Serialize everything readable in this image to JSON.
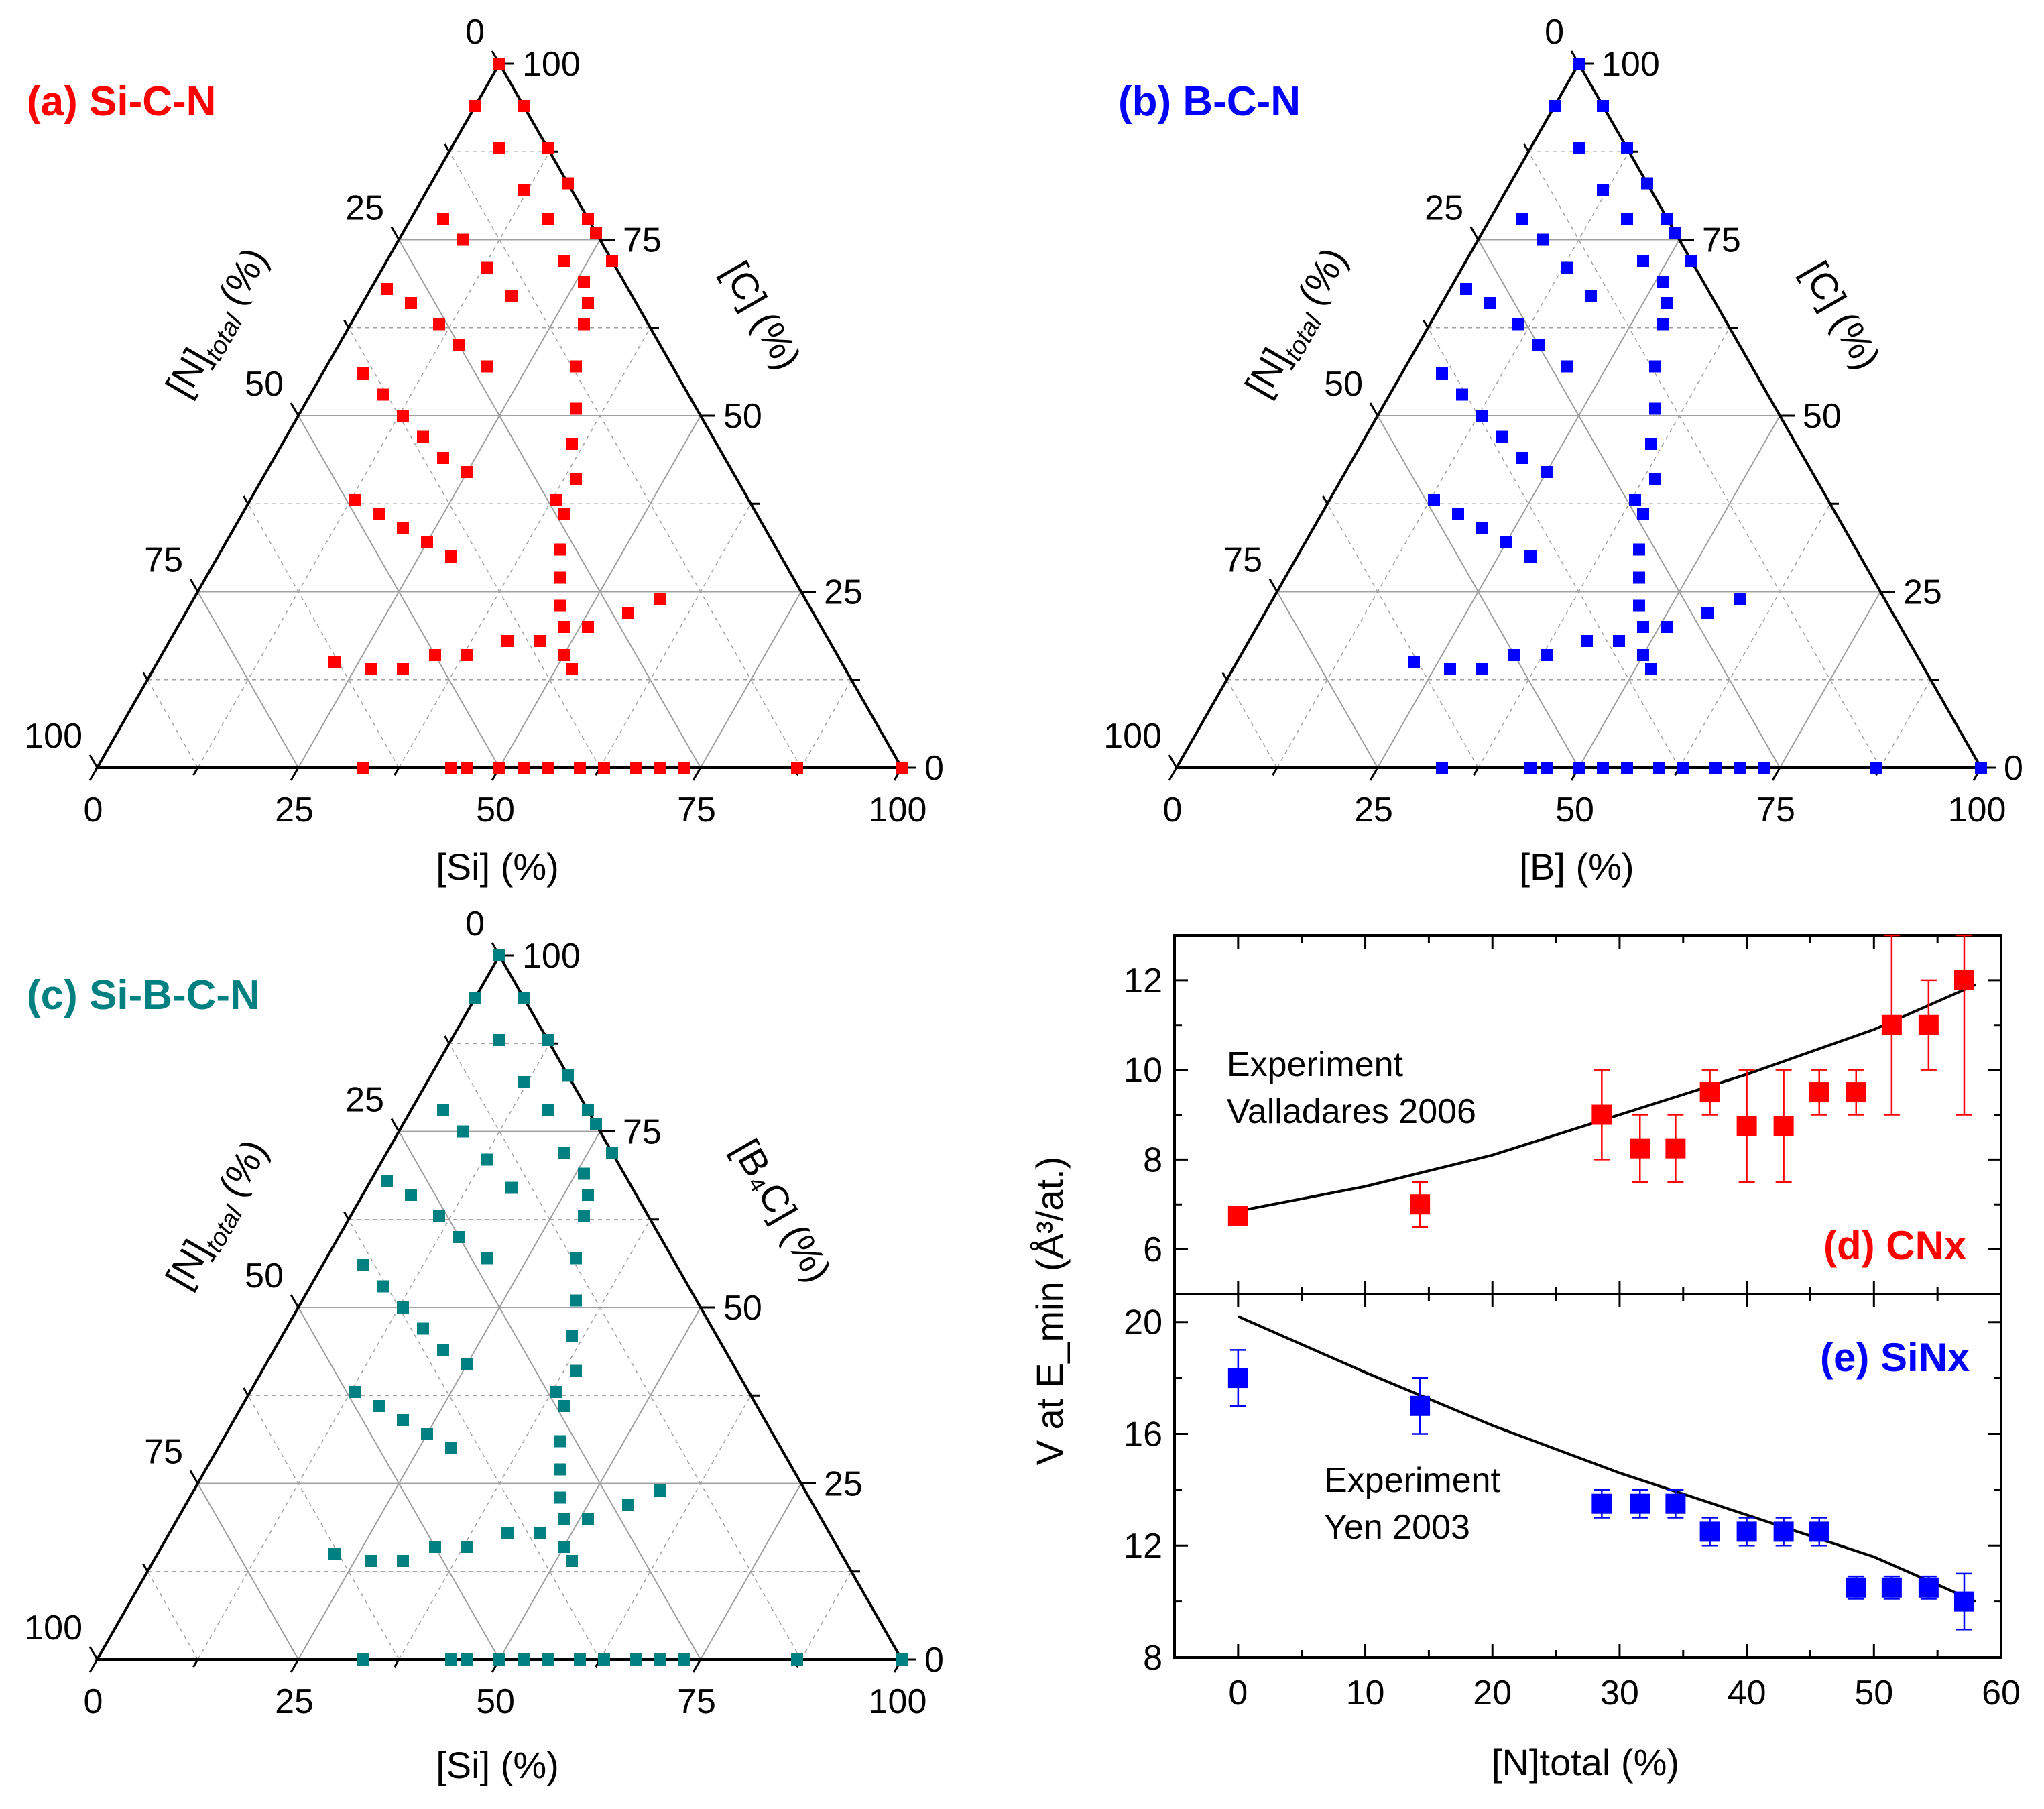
{
  "colors": {
    "si_c_n": "#ff0000",
    "b_c_n": "#0000ff",
    "si_b_c_n": "#008080",
    "cnx": "#ff0000",
    "sinx": "#0000ff",
    "axis": "#000000",
    "grid": "#a0a0a0"
  },
  "ternary_ticks": [
    "0",
    "25",
    "50",
    "75",
    "100"
  ],
  "panels": {
    "a": {
      "label": "(a) Si-C-N",
      "bottom_axis": "[Si] (%)",
      "right_axis": "[C] (%)"
    },
    "b": {
      "label": "(b) B-C-N",
      "bottom_axis": "[B] (%)",
      "right_axis": "[C] (%)"
    },
    "c": {
      "label": "(c) Si-B-C-N",
      "bottom_axis": "[Si] (%)",
      "right_axis": "[B₄C] (%)"
    },
    "de": {
      "ylabel": "V at E_min (Å³/at.)",
      "xlabel": "[N]total (%)",
      "d_label": "(d) CNx",
      "e_label": "(e) SiNx",
      "d_text_1": "Experiment",
      "d_text_2": "Valladares 2006",
      "e_text_1": "Experiment",
      "e_text_2": "Yen 2003",
      "x_ticks": [
        "0",
        "10",
        "20",
        "30",
        "40",
        "50",
        "60"
      ],
      "d_y_ticks": [
        "6",
        "8",
        "10",
        "12"
      ],
      "e_y_ticks": [
        "8",
        "12",
        "16",
        "20"
      ]
    }
  },
  "left_axis_label": {
    "main": "[N]",
    "sub": "total",
    "unit": "(%)"
  },
  "chart_data": [
    {
      "type": "scatter",
      "panel": "a",
      "title": "(a) Si-C-N",
      "ternary": true,
      "axes": {
        "bottom": "[Si] (%)",
        "right": "[C] (%)",
        "left": "[N]total (%)"
      },
      "series": [
        {
          "name": "Si-C-N",
          "points": [
            [
              0,
              100
            ],
            [
              6,
              94
            ],
            [
              12,
              88
            ],
            [
              17,
              83
            ],
            [
              22,
              78
            ],
            [
              28,
              72
            ],
            [
              33,
              0
            ],
            [
              38,
              38
            ],
            [
              0,
              94
            ],
            [
              6,
              88
            ],
            [
              12,
              82
            ],
            [
              17,
              78
            ],
            [
              22,
              72
            ],
            [
              28,
              66
            ],
            [
              4,
              78
            ],
            [
              8,
              75
            ],
            [
              13,
              71
            ],
            [
              18,
              67
            ],
            [
              2,
              68
            ],
            [
              6,
              66
            ],
            [
              11,
              63
            ],
            [
              15,
              60
            ],
            [
              20,
              57
            ],
            [
              5,
              56
            ],
            [
              9,
              53
            ],
            [
              13,
              50
            ],
            [
              17,
              47
            ],
            [
              21,
              44
            ],
            [
              25,
              42
            ],
            [
              13,
              38
            ],
            [
              17,
              36
            ],
            [
              21,
              34
            ],
            [
              25,
              32
            ],
            [
              29,
              30
            ],
            [
              22,
              15
            ],
            [
              27,
              14
            ],
            [
              31,
              14
            ],
            [
              34,
              16
            ],
            [
              38,
              16
            ],
            [
              42,
              18
            ],
            [
              46,
              18
            ],
            [
              51,
              20
            ],
            [
              55,
              22
            ],
            [
              58,
              24
            ],
            [
              24,
              76
            ],
            [
              26,
              69
            ],
            [
              29,
              63
            ],
            [
              31,
              57
            ],
            [
              34,
              51
            ],
            [
              36,
              46
            ],
            [
              39,
              41
            ],
            [
              40,
              36
            ],
            [
              42,
              31
            ],
            [
              44,
              27
            ],
            [
              46,
              23
            ],
            [
              48,
              20
            ],
            [
              50,
              16
            ],
            [
              52,
              14
            ],
            [
              44,
              0
            ],
            [
              46,
              0
            ],
            [
              50,
              0
            ],
            [
              53,
              0
            ],
            [
              56,
              0
            ],
            [
              60,
              0
            ],
            [
              63,
              0
            ],
            [
              67,
              0
            ],
            [
              70,
              0
            ],
            [
              73,
              0
            ],
            [
              87,
              0
            ],
            [
              100,
              0
            ]
          ]
        }
      ]
    },
    {
      "type": "scatter",
      "panel": "b",
      "title": "(b) B-C-N",
      "ternary": true,
      "axes": {
        "bottom": "[B] (%)",
        "right": "[C] (%)",
        "left": "[N]total (%)"
      },
      "series": [
        {
          "name": "B-C-N",
          "points": [
            [
              0,
              100
            ],
            [
              6,
              94
            ],
            [
              12,
              88
            ],
            [
              18,
              82
            ],
            [
              24,
              76
            ],
            [
              34,
              31
            ],
            [
              41,
              0
            ],
            [
              44,
              0
            ],
            [
              46,
              0
            ],
            [
              50,
              0
            ],
            [
              53,
              0
            ],
            [
              57,
              0
            ],
            [
              60,
              0
            ],
            [
              63,
              0
            ],
            [
              66,
              0
            ],
            [
              70,
              0
            ],
            [
              73,
              0
            ],
            [
              87,
              0
            ],
            [
              100,
              0
            ]
          ]
        }
      ]
    },
    {
      "type": "scatter",
      "panel": "c",
      "title": "(c) Si-B-C-N",
      "ternary": true,
      "axes": {
        "bottom": "[Si] (%)",
        "right": "[B₄C] (%)",
        "left": "[N]total (%)"
      },
      "series": [
        {
          "name": "Si-B-C-N",
          "points": [
            [
              0,
              100
            ],
            [
              6,
              94
            ],
            [
              12,
              88
            ],
            [
              17,
              83
            ],
            [
              22,
              78
            ],
            [
              28,
              72
            ],
            [
              38,
              38
            ],
            [
              44,
              0
            ],
            [
              87,
              0
            ],
            [
              100,
              0
            ]
          ]
        }
      ]
    },
    {
      "type": "scatter",
      "panel": "d",
      "title": "(d) CNx",
      "xlabel": "[N]total (%)",
      "ylabel": "V at E_min (Å³/at.)",
      "xlim": [
        -5,
        60
      ],
      "ylim": [
        5,
        13
      ],
      "series": [
        {
          "name": "Experiment Valladares 2006",
          "x": [
            0,
            14.3,
            28.6,
            31.6,
            34.4,
            37.1,
            40,
            42.9,
            45.7,
            48.6,
            51.4,
            54.3,
            57.1
          ],
          "y": [
            6.75,
            7,
            9,
            8.25,
            8.25,
            9.5,
            8.75,
            8.75,
            9.5,
            9.5,
            11,
            11,
            12
          ],
          "yerr": [
            0.15,
            0.5,
            1,
            0.75,
            0.75,
            0.5,
            1.25,
            1.25,
            0.5,
            0.5,
            2,
            1,
            3
          ]
        },
        {
          "name": "fit",
          "x": [
            0,
            10,
            20,
            30,
            40,
            50,
            58
          ],
          "y": [
            6.85,
            7.4,
            8.1,
            9,
            9.9,
            10.9,
            11.9
          ]
        }
      ]
    },
    {
      "type": "scatter",
      "panel": "e",
      "title": "(e) SiNx",
      "xlabel": "[N]total (%)",
      "ylabel": "V at E_min (Å³/at.)",
      "xlim": [
        -5,
        60
      ],
      "ylim": [
        8,
        21
      ],
      "series": [
        {
          "name": "Experiment Yen 2003",
          "x": [
            0,
            14.3,
            28.6,
            31.6,
            34.4,
            37.1,
            40,
            42.9,
            45.7,
            48.6,
            51.4,
            54.3,
            57.1
          ],
          "y": [
            18,
            17,
            13.5,
            13.5,
            13.5,
            12.5,
            12.5,
            12.5,
            12.5,
            10.5,
            10.5,
            10.5,
            10
          ],
          "yerr": [
            1,
            1,
            0.5,
            0.5,
            0.5,
            0.5,
            0.5,
            0.5,
            0.5,
            0.4,
            0.4,
            0.4,
            1
          ]
        },
        {
          "name": "fit",
          "x": [
            0,
            10,
            20,
            30,
            40,
            50,
            58
          ],
          "y": [
            20.2,
            18.2,
            16.3,
            14.6,
            13.1,
            11.6,
            10
          ]
        }
      ]
    }
  ]
}
